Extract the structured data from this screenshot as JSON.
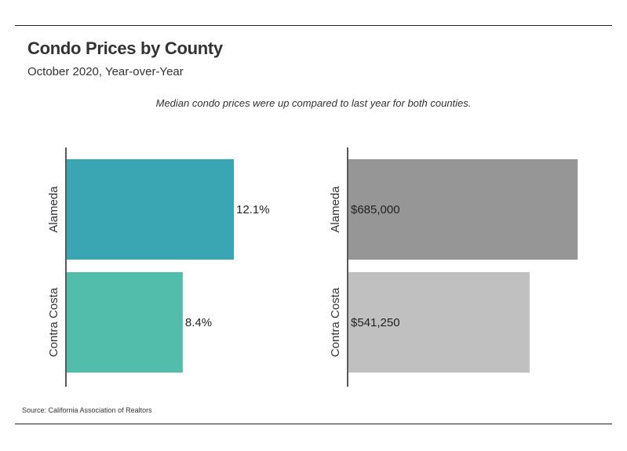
{
  "header": {
    "title": "Condo Prices by County",
    "subtitle": "October 2020, Year-over-Year",
    "annotation": "Median condo prices were up compared to last year for both counties."
  },
  "footer": {
    "source": "Source:  California Association of Realtors"
  },
  "chart_data": [
    {
      "type": "bar",
      "orientation": "horizontal",
      "categories": [
        "Alameda",
        "Contra Costa"
      ],
      "values": [
        12.1,
        8.4
      ],
      "data_labels": [
        "12.1%",
        "8.4%"
      ],
      "unit": "percent change",
      "colors": [
        "#3aa6b3",
        "#52bdaa"
      ],
      "xlim": [
        0,
        14.2
      ],
      "grid": false
    },
    {
      "type": "bar",
      "orientation": "horizontal",
      "categories": [
        "Alameda",
        "Contra Costa"
      ],
      "values": [
        685000,
        541250
      ],
      "data_labels": [
        "$685,000",
        "$541,250"
      ],
      "unit": "USD",
      "colors": [
        "#969696",
        "#c0c0c0"
      ],
      "xlim": [
        0,
        715000
      ],
      "grid": false
    }
  ]
}
